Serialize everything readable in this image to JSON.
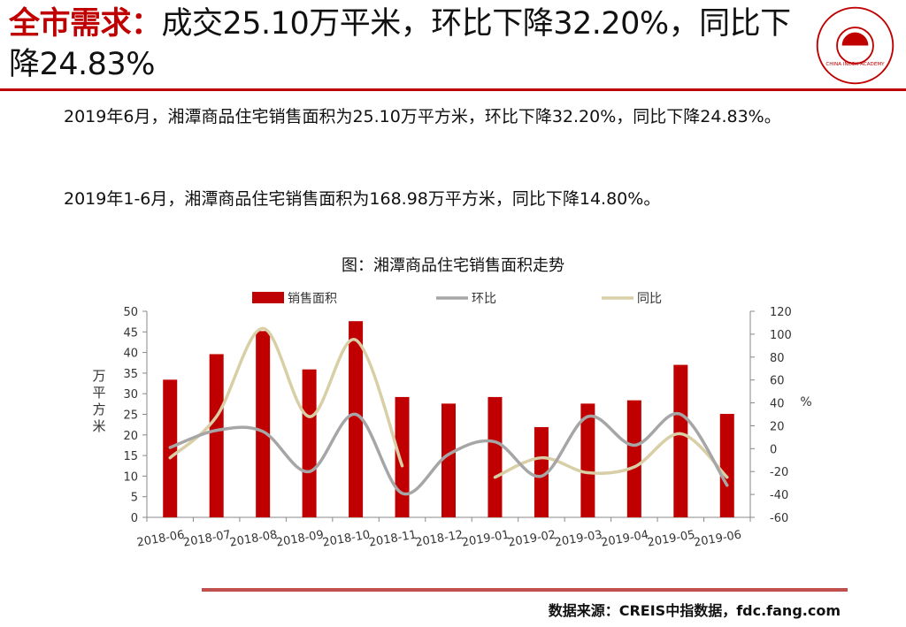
{
  "header": {
    "title_highlight": "全市需求：",
    "title_rest": "成交25.10万平米，环比下降32.20%，同比下降24.83%"
  },
  "logo": {
    "ring_text": "中国指数研究院 · CHINA INDEX ACADEMY",
    "center_text": "中指"
  },
  "body": {
    "paragraph_1": "2019年6月，湘潭商品住宅销售面积为25.10万平方米，环比下降32.20%，同比下降24.83%。",
    "paragraph_2": "2019年1-6月，湘潭商品住宅销售面积为168.98万平方米，同比下降14.80%。"
  },
  "footer": {
    "source": "数据来源：CREIS中指数据，fdc.fang.com"
  },
  "colors": {
    "accent": "#c00000",
    "bar": "#c00000",
    "mom_line": "#a6a6a6",
    "yoy_line": "#d8cfa6",
    "bottom_rule": "#c0504d"
  },
  "chart_data": {
    "type": "bar",
    "title": "图：湘潭商品住宅销售面积走势",
    "categories": [
      "2018-06",
      "2018-07",
      "2018-08",
      "2018-09",
      "2018-10",
      "2018-11",
      "2018-12",
      "2019-01",
      "2019-02",
      "2019-03",
      "2019-04",
      "2019-05",
      "2019-06"
    ],
    "series": [
      {
        "name": "销售面积",
        "type": "bar",
        "axis": "left",
        "values": [
          33.4,
          39.6,
          45.2,
          35.9,
          47.6,
          29.2,
          27.6,
          29.2,
          21.9,
          27.6,
          28.4,
          37.0,
          25.1
        ]
      },
      {
        "name": "环比",
        "type": "line",
        "axis": "right",
        "values": [
          1,
          16,
          15,
          -20,
          30,
          -39,
          -5,
          6,
          -24,
          28,
          3,
          30,
          -32
        ]
      },
      {
        "name": "同比",
        "type": "line",
        "axis": "right",
        "values": [
          -8,
          28,
          105,
          28,
          95,
          -15,
          null,
          -25,
          -8,
          -21,
          -16,
          13,
          -25
        ]
      }
    ],
    "ylabel": "万平方米",
    "ylim": [
      0,
      50
    ],
    "yticks": [
      0,
      5,
      10,
      15,
      20,
      25,
      30,
      35,
      40,
      45,
      50
    ],
    "y2label": "%",
    "y2lim": [
      -60,
      120
    ],
    "y2ticks": [
      -60,
      -40,
      -20,
      0,
      20,
      40,
      60,
      80,
      100,
      120
    ],
    "legend_position": "top",
    "grid": false
  }
}
